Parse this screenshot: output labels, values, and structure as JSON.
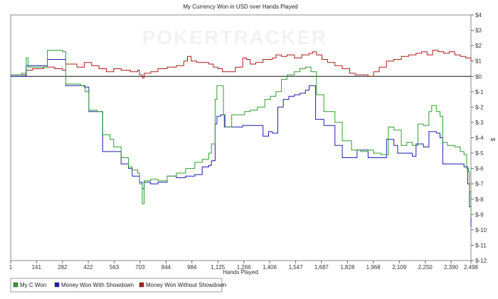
{
  "chart_data": {
    "type": "line",
    "title": "My Currency Won in USD over Hands Played",
    "watermark": "POKERTRACKER",
    "xlabel": "Hands Played",
    "ylabel": "$",
    "xlim": [
      1,
      2498
    ],
    "ylim": [
      -12,
      4
    ],
    "x_ticks": [
      1,
      141,
      282,
      422,
      563,
      703,
      844,
      984,
      1125,
      1266,
      1406,
      1547,
      1687,
      1828,
      1968,
      2109,
      2250,
      2390,
      2498
    ],
    "x_tick_labels": [
      "1",
      "141",
      "282",
      "422",
      "563",
      "703",
      "844",
      "984",
      "1,125",
      "1,266",
      "1,406",
      "1,547",
      "1,687",
      "1,828",
      "1,968",
      "2,109",
      "2,250",
      "2,390",
      "2,498"
    ],
    "y_ticks": [
      4,
      3,
      2,
      1,
      0,
      -1,
      -2,
      -3,
      -4,
      -5,
      -6,
      -7,
      -8,
      -9,
      -10,
      -11,
      -12
    ],
    "y_tick_labels": [
      "$4",
      "$3",
      "$2",
      "$1",
      "$0",
      "$-1",
      "$-2",
      "$-3",
      "$-4",
      "$-5",
      "$-6",
      "$-7",
      "$-8",
      "$-9",
      "$-10",
      "$-11",
      "$-12"
    ],
    "zero_line": true,
    "grid": false,
    "legend_position": "bottom-left",
    "series": [
      {
        "name": "My C Won",
        "color": "#2e9e2e",
        "points": [
          [
            1,
            0.1
          ],
          [
            60,
            0.2
          ],
          [
            85,
            1.2
          ],
          [
            95,
            0.6
          ],
          [
            120,
            0.6
          ],
          [
            200,
            1.7
          ],
          [
            282,
            1.6
          ],
          [
            300,
            -0.5
          ],
          [
            380,
            -0.6
          ],
          [
            405,
            -1.0
          ],
          [
            425,
            -2.2
          ],
          [
            470,
            -2.3
          ],
          [
            500,
            -3.8
          ],
          [
            540,
            -4.1
          ],
          [
            560,
            -4.6
          ],
          [
            600,
            -5.3
          ],
          [
            640,
            -5.9
          ],
          [
            660,
            -6.1
          ],
          [
            690,
            -6.3
          ],
          [
            700,
            -7.0
          ],
          [
            715,
            -8.3
          ],
          [
            725,
            -6.8
          ],
          [
            760,
            -6.7
          ],
          [
            800,
            -6.8
          ],
          [
            850,
            -6.5
          ],
          [
            900,
            -6.3
          ],
          [
            950,
            -6.0
          ],
          [
            1000,
            -5.6
          ],
          [
            1040,
            -5.4
          ],
          [
            1075,
            -5.0
          ],
          [
            1090,
            -4.4
          ],
          [
            1110,
            -1.5
          ],
          [
            1120,
            -0.6
          ],
          [
            1140,
            -0.6
          ],
          [
            1155,
            -2.5
          ],
          [
            1165,
            -3.3
          ],
          [
            1200,
            -2.5
          ],
          [
            1230,
            -2.5
          ],
          [
            1270,
            -2.3
          ],
          [
            1300,
            -2.2
          ],
          [
            1340,
            -2.0
          ],
          [
            1380,
            -1.5
          ],
          [
            1410,
            -1.3
          ],
          [
            1440,
            -1.0
          ],
          [
            1470,
            -0.2
          ],
          [
            1500,
            0.1
          ],
          [
            1540,
            0.3
          ],
          [
            1570,
            0.5
          ],
          [
            1600,
            0.6
          ],
          [
            1630,
            0.3
          ],
          [
            1650,
            0.3
          ],
          [
            1660,
            -1.2
          ],
          [
            1700,
            -2.3
          ],
          [
            1760,
            -3.0
          ],
          [
            1800,
            -4.2
          ],
          [
            1850,
            -4.8
          ],
          [
            1900,
            -4.9
          ],
          [
            1940,
            -4.8
          ],
          [
            1970,
            -5.0
          ],
          [
            2010,
            -5.1
          ],
          [
            2050,
            -3.3
          ],
          [
            2080,
            -3.5
          ],
          [
            2120,
            -4.5
          ],
          [
            2150,
            -4.3
          ],
          [
            2180,
            -4.5
          ],
          [
            2210,
            -3.1
          ],
          [
            2240,
            -3.2
          ],
          [
            2270,
            -2.3
          ],
          [
            2285,
            -1.9
          ],
          [
            2310,
            -2.3
          ],
          [
            2330,
            -2.6
          ],
          [
            2345,
            -4.3
          ],
          [
            2370,
            -4.5
          ],
          [
            2410,
            -4.6
          ],
          [
            2440,
            -4.9
          ],
          [
            2460,
            -5.1
          ],
          [
            2475,
            -6.0
          ],
          [
            2485,
            -6.2
          ],
          [
            2490,
            -7.5
          ],
          [
            2498,
            -9.2
          ]
        ]
      },
      {
        "name": "Money Won With Showdown",
        "color": "#1c1cb4",
        "points": [
          [
            1,
            0.0
          ],
          [
            60,
            0.0
          ],
          [
            85,
            0.7
          ],
          [
            140,
            0.7
          ],
          [
            200,
            1.1
          ],
          [
            282,
            1.1
          ],
          [
            300,
            -0.6
          ],
          [
            400,
            -0.7
          ],
          [
            425,
            -2.3
          ],
          [
            470,
            -2.3
          ],
          [
            500,
            -4.9
          ],
          [
            560,
            -4.9
          ],
          [
            600,
            -5.7
          ],
          [
            640,
            -6.0
          ],
          [
            660,
            -6.5
          ],
          [
            700,
            -6.9
          ],
          [
            715,
            -7.3
          ],
          [
            725,
            -6.9
          ],
          [
            760,
            -7.0
          ],
          [
            800,
            -6.9
          ],
          [
            850,
            -6.5
          ],
          [
            900,
            -6.6
          ],
          [
            950,
            -6.5
          ],
          [
            1000,
            -6.4
          ],
          [
            1040,
            -5.9
          ],
          [
            1075,
            -5.8
          ],
          [
            1090,
            -5.5
          ],
          [
            1110,
            -3.1
          ],
          [
            1120,
            -2.6
          ],
          [
            1140,
            -2.5
          ],
          [
            1160,
            -3.3
          ],
          [
            1200,
            -3.3
          ],
          [
            1260,
            -3.2
          ],
          [
            1330,
            -3.2
          ],
          [
            1370,
            -3.9
          ],
          [
            1400,
            -3.6
          ],
          [
            1420,
            -3.7
          ],
          [
            1450,
            -2.0
          ],
          [
            1480,
            -1.5
          ],
          [
            1510,
            -1.3
          ],
          [
            1540,
            -1.2
          ],
          [
            1570,
            -1.1
          ],
          [
            1600,
            -0.9
          ],
          [
            1620,
            -0.6
          ],
          [
            1640,
            -0.6
          ],
          [
            1655,
            -2.8
          ],
          [
            1700,
            -3.2
          ],
          [
            1740,
            -3.2
          ],
          [
            1760,
            -4.5
          ],
          [
            1800,
            -5.3
          ],
          [
            1850,
            -5.3
          ],
          [
            1880,
            -4.8
          ],
          [
            1940,
            -5.3
          ],
          [
            1980,
            -5.3
          ],
          [
            2020,
            -5.3
          ],
          [
            2040,
            -4.1
          ],
          [
            2080,
            -4.5
          ],
          [
            2100,
            -5.0
          ],
          [
            2150,
            -5.0
          ],
          [
            2180,
            -5.2
          ],
          [
            2200,
            -4.4
          ],
          [
            2240,
            -4.6
          ],
          [
            2270,
            -3.6
          ],
          [
            2310,
            -3.7
          ],
          [
            2330,
            -4.0
          ],
          [
            2345,
            -5.7
          ],
          [
            2400,
            -5.7
          ],
          [
            2440,
            -5.7
          ],
          [
            2460,
            -5.9
          ],
          [
            2480,
            -7.0
          ],
          [
            2490,
            -8.5
          ],
          [
            2498,
            -9.8
          ]
        ]
      },
      {
        "name": "Money Won Without Showdown",
        "color": "#aa1c1c",
        "points": [
          [
            1,
            0.1
          ],
          [
            60,
            0.1
          ],
          [
            85,
            0.4
          ],
          [
            120,
            0.5
          ],
          [
            180,
            0.6
          ],
          [
            240,
            0.5
          ],
          [
            282,
            0.4
          ],
          [
            300,
            0.8
          ],
          [
            360,
            0.6
          ],
          [
            400,
            0.9
          ],
          [
            440,
            0.7
          ],
          [
            480,
            0.5
          ],
          [
            520,
            0.3
          ],
          [
            560,
            0.5
          ],
          [
            600,
            0.4
          ],
          [
            650,
            0.3
          ],
          [
            690,
            0.4
          ],
          [
            700,
            0.1
          ],
          [
            715,
            -0.1
          ],
          [
            725,
            0.2
          ],
          [
            760,
            0.3
          ],
          [
            800,
            0.5
          ],
          [
            850,
            0.6
          ],
          [
            900,
            0.7
          ],
          [
            940,
            1.0
          ],
          [
            960,
            1.3
          ],
          [
            980,
            1.0
          ],
          [
            1010,
            0.9
          ],
          [
            1040,
            0.9
          ],
          [
            1075,
            0.8
          ],
          [
            1100,
            0.6
          ],
          [
            1125,
            0.5
          ],
          [
            1150,
            0.3
          ],
          [
            1180,
            0.3
          ],
          [
            1220,
            0.6
          ],
          [
            1260,
            1.2
          ],
          [
            1280,
            1.1
          ],
          [
            1300,
            0.8
          ],
          [
            1330,
            0.9
          ],
          [
            1370,
            1.1
          ],
          [
            1400,
            1.1
          ],
          [
            1420,
            1.2
          ],
          [
            1440,
            1.4
          ],
          [
            1470,
            1.3
          ],
          [
            1500,
            1.4
          ],
          [
            1540,
            1.2
          ],
          [
            1580,
            1.4
          ],
          [
            1620,
            1.5
          ],
          [
            1640,
            1.6
          ],
          [
            1660,
            1.4
          ],
          [
            1690,
            1.1
          ],
          [
            1720,
            0.9
          ],
          [
            1760,
            0.7
          ],
          [
            1800,
            0.5
          ],
          [
            1840,
            0.2
          ],
          [
            1870,
            0.1
          ],
          [
            1900,
            0.1
          ],
          [
            1940,
            0.0
          ],
          [
            1970,
            0.3
          ],
          [
            2000,
            0.6
          ],
          [
            2040,
            1.0
          ],
          [
            2080,
            1.1
          ],
          [
            2120,
            1.3
          ],
          [
            2160,
            1.4
          ],
          [
            2200,
            1.5
          ],
          [
            2230,
            1.6
          ],
          [
            2260,
            1.4
          ],
          [
            2290,
            1.7
          ],
          [
            2320,
            1.6
          ],
          [
            2350,
            1.5
          ],
          [
            2380,
            1.6
          ],
          [
            2410,
            1.4
          ],
          [
            2440,
            1.3
          ],
          [
            2470,
            1.2
          ],
          [
            2498,
            1.0
          ]
        ]
      }
    ]
  }
}
